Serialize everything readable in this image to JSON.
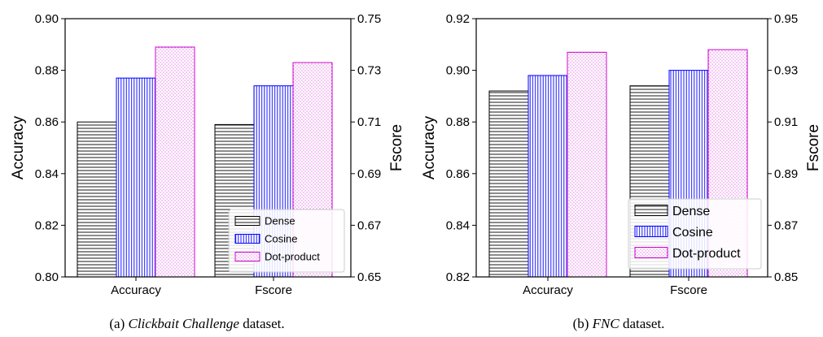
{
  "chart_data": [
    {
      "type": "bar",
      "caption": {
        "prefix": "(a) ",
        "italic": "Clickbait Challenge",
        "suffix": " dataset."
      },
      "categories": [
        "Accuracy",
        "Fscore"
      ],
      "series": [
        {
          "name": "Dense",
          "values": [
            0.86,
            0.709
          ],
          "color": "#000000",
          "pattern": "horizontal"
        },
        {
          "name": "Cosine",
          "values": [
            0.877,
            0.724
          ],
          "color": "#0000ff",
          "pattern": "vertical"
        },
        {
          "name": "Dot-product",
          "values": [
            0.889,
            0.733
          ],
          "color": "#cc00cc",
          "pattern": "dots"
        }
      ],
      "series_axis": [
        "left",
        "right"
      ],
      "ylabel": "Accuracy",
      "ylabel_right": "Fscore",
      "ylim": [
        0.8,
        0.9
      ],
      "yticks": [
        "0.80",
        "0.82",
        "0.84",
        "0.86",
        "0.88",
        "0.90"
      ],
      "ylim_right": [
        0.65,
        0.75
      ],
      "yticks_right": [
        "0.65",
        "0.67",
        "0.69",
        "0.71",
        "0.73",
        "0.75"
      ],
      "legend": "bottom-right",
      "grid": false
    },
    {
      "type": "bar",
      "caption": {
        "prefix": "(b) ",
        "italic": "FNC",
        "suffix": " dataset."
      },
      "categories": [
        "Accuracy",
        "Fscore"
      ],
      "series": [
        {
          "name": "Dense",
          "values": [
            0.892,
            0.924
          ],
          "color": "#000000",
          "pattern": "horizontal"
        },
        {
          "name": "Cosine",
          "values": [
            0.898,
            0.93
          ],
          "color": "#0000ff",
          "pattern": "vertical"
        },
        {
          "name": "Dot-product",
          "values": [
            0.907,
            0.938
          ],
          "color": "#cc00cc",
          "pattern": "dots"
        }
      ],
      "series_axis": [
        "left",
        "right"
      ],
      "ylabel": "Accuracy",
      "ylabel_right": "Fscore",
      "ylim": [
        0.82,
        0.92
      ],
      "yticks": [
        "0.82",
        "0.84",
        "0.86",
        "0.88",
        "0.90",
        "0.92"
      ],
      "ylim_right": [
        0.85,
        0.95
      ],
      "yticks_right": [
        "0.85",
        "0.87",
        "0.89",
        "0.91",
        "0.93",
        "0.95"
      ],
      "legend": "bottom-right",
      "grid": false
    }
  ]
}
